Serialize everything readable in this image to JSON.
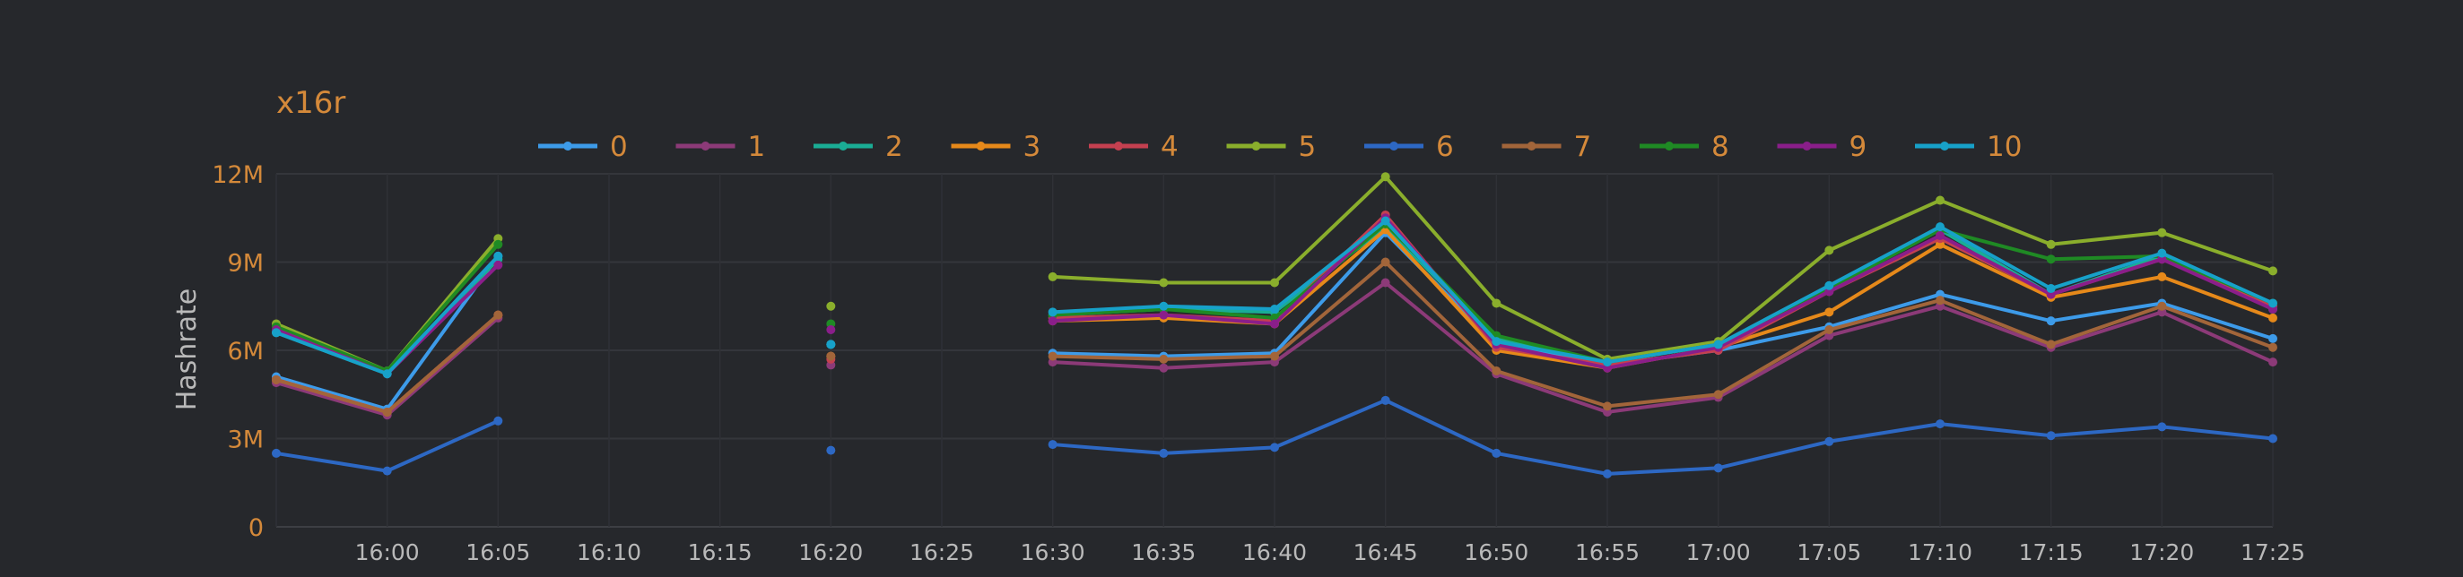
{
  "chart_data": {
    "type": "line",
    "title": "x16r",
    "xlabel": "",
    "ylabel": "Hashrate",
    "ylim": [
      0,
      12000000
    ],
    "yticks": [
      0,
      3000000,
      6000000,
      9000000,
      12000000
    ],
    "ytick_labels": [
      "0",
      "3M",
      "6M",
      "9M",
      "12M"
    ],
    "x": [
      "15:55",
      "16:00",
      "16:05",
      "16:10",
      "16:15",
      "16:20",
      "16:25",
      "16:30",
      "16:35",
      "16:40",
      "16:45",
      "16:50",
      "16:55",
      "17:00",
      "17:05",
      "17:10",
      "17:15",
      "17:20",
      "17:25"
    ],
    "xtick_labels": [
      "16:00",
      "16:05",
      "16:10",
      "16:15",
      "16:20",
      "16:25",
      "16:30",
      "16:35",
      "16:40",
      "16:45",
      "16:50",
      "16:55",
      "17:00",
      "17:05",
      "17:10",
      "17:15",
      "17:20",
      "17:25"
    ],
    "grid": true,
    "legend_position": "top",
    "series": [
      {
        "name": "0",
        "color": "#3d9be9",
        "values": [
          5100000,
          4000000,
          9200000,
          null,
          null,
          6200000,
          null,
          5900000,
          5800000,
          5900000,
          10000000,
          6200000,
          5500000,
          6000000,
          6800000,
          7900000,
          7000000,
          7600000,
          6400000
        ]
      },
      {
        "name": "1",
        "color": "#8c3a78",
        "values": [
          4900000,
          3800000,
          7100000,
          null,
          null,
          5500000,
          null,
          5600000,
          5400000,
          5600000,
          8300000,
          5200000,
          3900000,
          4400000,
          6500000,
          7500000,
          6100000,
          7300000,
          5600000
        ]
      },
      {
        "name": "2",
        "color": "#1aad95",
        "values": [
          6600000,
          5200000,
          9100000,
          null,
          null,
          6200000,
          null,
          7200000,
          7400000,
          7300000,
          10200000,
          6400000,
          5600000,
          6200000,
          8100000,
          10100000,
          7900000,
          9200000,
          7400000
        ]
      },
      {
        "name": "3",
        "color": "#e6891a",
        "values": [
          5000000,
          3900000,
          7200000,
          null,
          null,
          5800000,
          null,
          7000000,
          7100000,
          6900000,
          10100000,
          6000000,
          5400000,
          6100000,
          7300000,
          9600000,
          7800000,
          8500000,
          7100000
        ]
      },
      {
        "name": "4",
        "color": "#c44050",
        "values": [
          5000000,
          3900000,
          7200000,
          null,
          null,
          5700000,
          null,
          7100000,
          7200000,
          7000000,
          10600000,
          6100000,
          5500000,
          6000000,
          8000000,
          9800000,
          7900000,
          9100000,
          7500000
        ]
      },
      {
        "name": "5",
        "color": "#8aae2c",
        "values": [
          6900000,
          5300000,
          9800000,
          null,
          null,
          7500000,
          null,
          8500000,
          8300000,
          8300000,
          11900000,
          7600000,
          5700000,
          6300000,
          9400000,
          11100000,
          9600000,
          10000000,
          8700000
        ]
      },
      {
        "name": "6",
        "color": "#2d68c4",
        "values": [
          2500000,
          1900000,
          3600000,
          null,
          null,
          2600000,
          null,
          2800000,
          2500000,
          2700000,
          4300000,
          2500000,
          1800000,
          2000000,
          2900000,
          3500000,
          3100000,
          3400000,
          3000000
        ]
      },
      {
        "name": "7",
        "color": "#a2653a",
        "values": [
          5000000,
          3900000,
          7200000,
          null,
          null,
          5800000,
          null,
          5800000,
          5700000,
          5800000,
          9000000,
          5300000,
          4100000,
          4500000,
          6700000,
          7700000,
          6200000,
          7500000,
          6100000
        ]
      },
      {
        "name": "8",
        "color": "#1f8a24",
        "values": [
          6800000,
          5300000,
          9600000,
          null,
          null,
          6900000,
          null,
          7200000,
          7400000,
          7100000,
          10300000,
          6500000,
          5600000,
          6200000,
          8100000,
          10100000,
          9100000,
          9200000,
          7600000
        ]
      },
      {
        "name": "9",
        "color": "#8a1e8a",
        "values": [
          6700000,
          5200000,
          8900000,
          null,
          null,
          6700000,
          null,
          7000000,
          7200000,
          6900000,
          10500000,
          6200000,
          5400000,
          6100000,
          8000000,
          9900000,
          7900000,
          9100000,
          7400000
        ]
      },
      {
        "name": "10",
        "color": "#17a1c9",
        "values": [
          6600000,
          5200000,
          9200000,
          null,
          null,
          6200000,
          null,
          7300000,
          7500000,
          7400000,
          10400000,
          6300000,
          5600000,
          6200000,
          8200000,
          10200000,
          8100000,
          9300000,
          7600000
        ]
      }
    ]
  }
}
